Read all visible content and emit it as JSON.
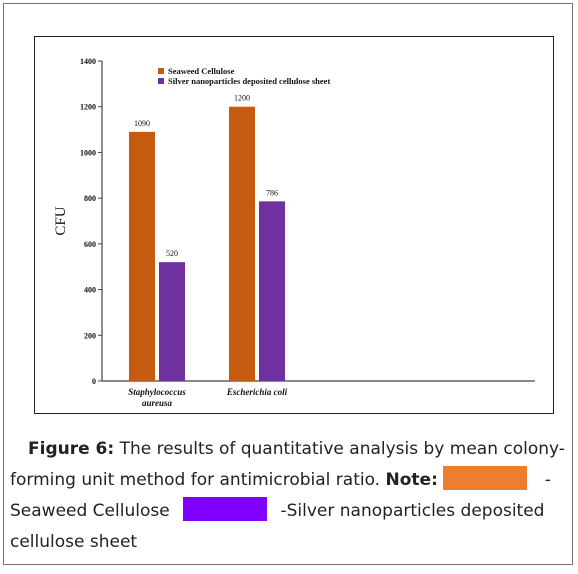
{
  "chart_data": {
    "type": "bar",
    "categories": [
      "Staphylococcus aureusa",
      "Escherichia coli"
    ],
    "category_lines": [
      [
        "Staphylococcus",
        "aureusa"
      ],
      [
        "Escherichia coli"
      ]
    ],
    "series": [
      {
        "name": "Seaweed Cellulose",
        "values": [
          1090,
          1200
        ],
        "color": "#c55a11"
      },
      {
        "name": "Silver nanoparticles deposited cellulose sheet",
        "values": [
          520,
          786
        ],
        "color": "#7030a0"
      }
    ],
    "data_labels": [
      [
        "1090",
        "1200"
      ],
      [
        "520",
        "786"
      ]
    ],
    "ylabel": "CFU",
    "ylim": [
      0,
      1400
    ],
    "yticks": [
      0,
      200,
      400,
      600,
      800,
      1000,
      1200,
      1400
    ],
    "legend_position": "top-left",
    "grid": false
  },
  "caption": {
    "figure_label": "Figure 6:",
    "text_part1": "The results of quantitative analysis by mean colony-",
    "text_part2": "forming unit method for antimicrobial ratio.",
    "note_label": "Note:",
    "dash1": "-",
    "seaweed_label": "Seaweed Cellulose",
    "silver_label": "-Silver nanoparticles deposited",
    "last_line": "cellulose sheet",
    "swatch_orange": "#ed7d31",
    "swatch_purple": "#7f00ff"
  }
}
